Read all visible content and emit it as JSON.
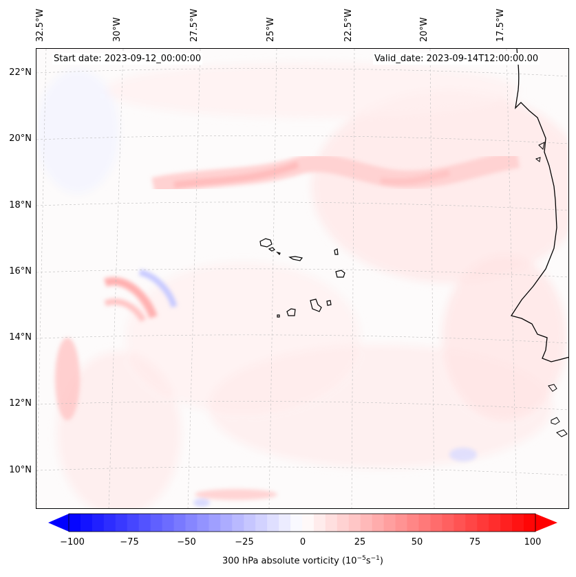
{
  "map": {
    "lon_labels": [
      "32.5°W",
      "30°W",
      "27.5°W",
      "25°W",
      "22.5°W",
      "20°W",
      "17.5°W"
    ],
    "lat_labels": [
      "22°N",
      "20°N",
      "18°N",
      "16°N",
      "14°N",
      "12°N",
      "10°N"
    ],
    "start_date": "Start date: 2023-09-12_00:00:00",
    "valid_date": "Valid_date: 2023-09-14T12:00:00.00"
  },
  "colorbar": {
    "ticks": [
      "−100",
      "−75",
      "−50",
      "−25",
      "0",
      "25",
      "50",
      "75",
      "100"
    ],
    "label_main": "300 hPa absolute vorticity (10",
    "label_exp1": "−5",
    "label_mid": "s",
    "label_exp2": "−1",
    "label_end": ")",
    "min_color": "#0000ff",
    "mid_color": "#ffffff",
    "max_color": "#ff0000"
  }
}
